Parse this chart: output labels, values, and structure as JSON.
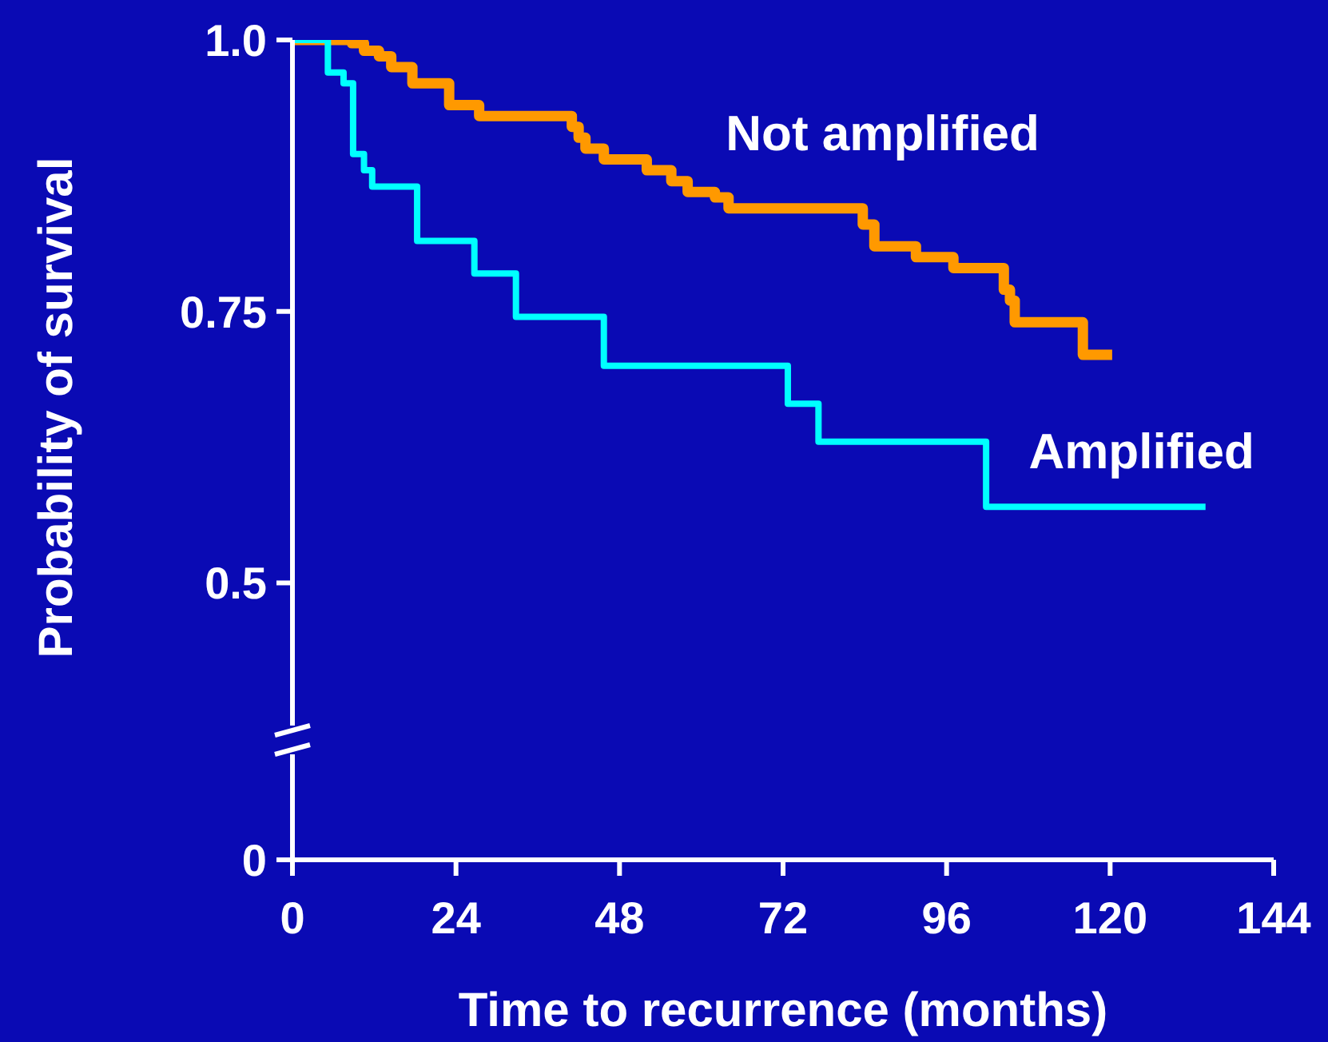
{
  "chart_data": {
    "type": "step",
    "xlabel": "Time to recurrence (months)",
    "ylabel": "Probability of survival",
    "xlim": [
      0,
      144
    ],
    "xticks": [
      0,
      24,
      48,
      72,
      96,
      120,
      144
    ],
    "ylim": [
      0.245,
      1.0
    ],
    "yticks": [
      {
        "value": 0.245,
        "label": "0"
      },
      {
        "value": 0.5,
        "label": "0.5"
      },
      {
        "value": 0.75,
        "label": "0.75"
      },
      {
        "value": 1.0,
        "label": "1.0"
      }
    ],
    "marker": "none",
    "line_style": "solid",
    "series": [
      {
        "name": "Not amplified",
        "color": "#ff9900",
        "x": [
          0,
          8.7,
          10.5,
          12.7,
          14.5,
          17.6,
          23,
          27.4,
          41,
          42,
          43,
          45.7,
          52,
          55.6,
          58,
          62,
          64,
          83.7,
          85.4,
          91.5,
          97,
          104.4,
          105.3,
          106,
          116,
          120.3
        ],
        "values": [
          1.0,
          0.997,
          0.99,
          0.985,
          0.975,
          0.96,
          0.94,
          0.93,
          0.92,
          0.91,
          0.9,
          0.89,
          0.88,
          0.87,
          0.86,
          0.855,
          0.845,
          0.83,
          0.81,
          0.8,
          0.79,
          0.77,
          0.76,
          0.74,
          0.71,
          0.71
        ]
      },
      {
        "name": "Amplified",
        "color": "#00ffff",
        "x": [
          0,
          5.2,
          7.5,
          8.9,
          10.5,
          11.7,
          18.3,
          26.7,
          32.8,
          45.7,
          72.7,
          77.2,
          101.8,
          134
        ],
        "values": [
          1.0,
          0.97,
          0.96,
          0.895,
          0.88,
          0.865,
          0.815,
          0.785,
          0.745,
          0.7,
          0.665,
          0.63,
          0.57,
          0.57
        ]
      }
    ]
  }
}
